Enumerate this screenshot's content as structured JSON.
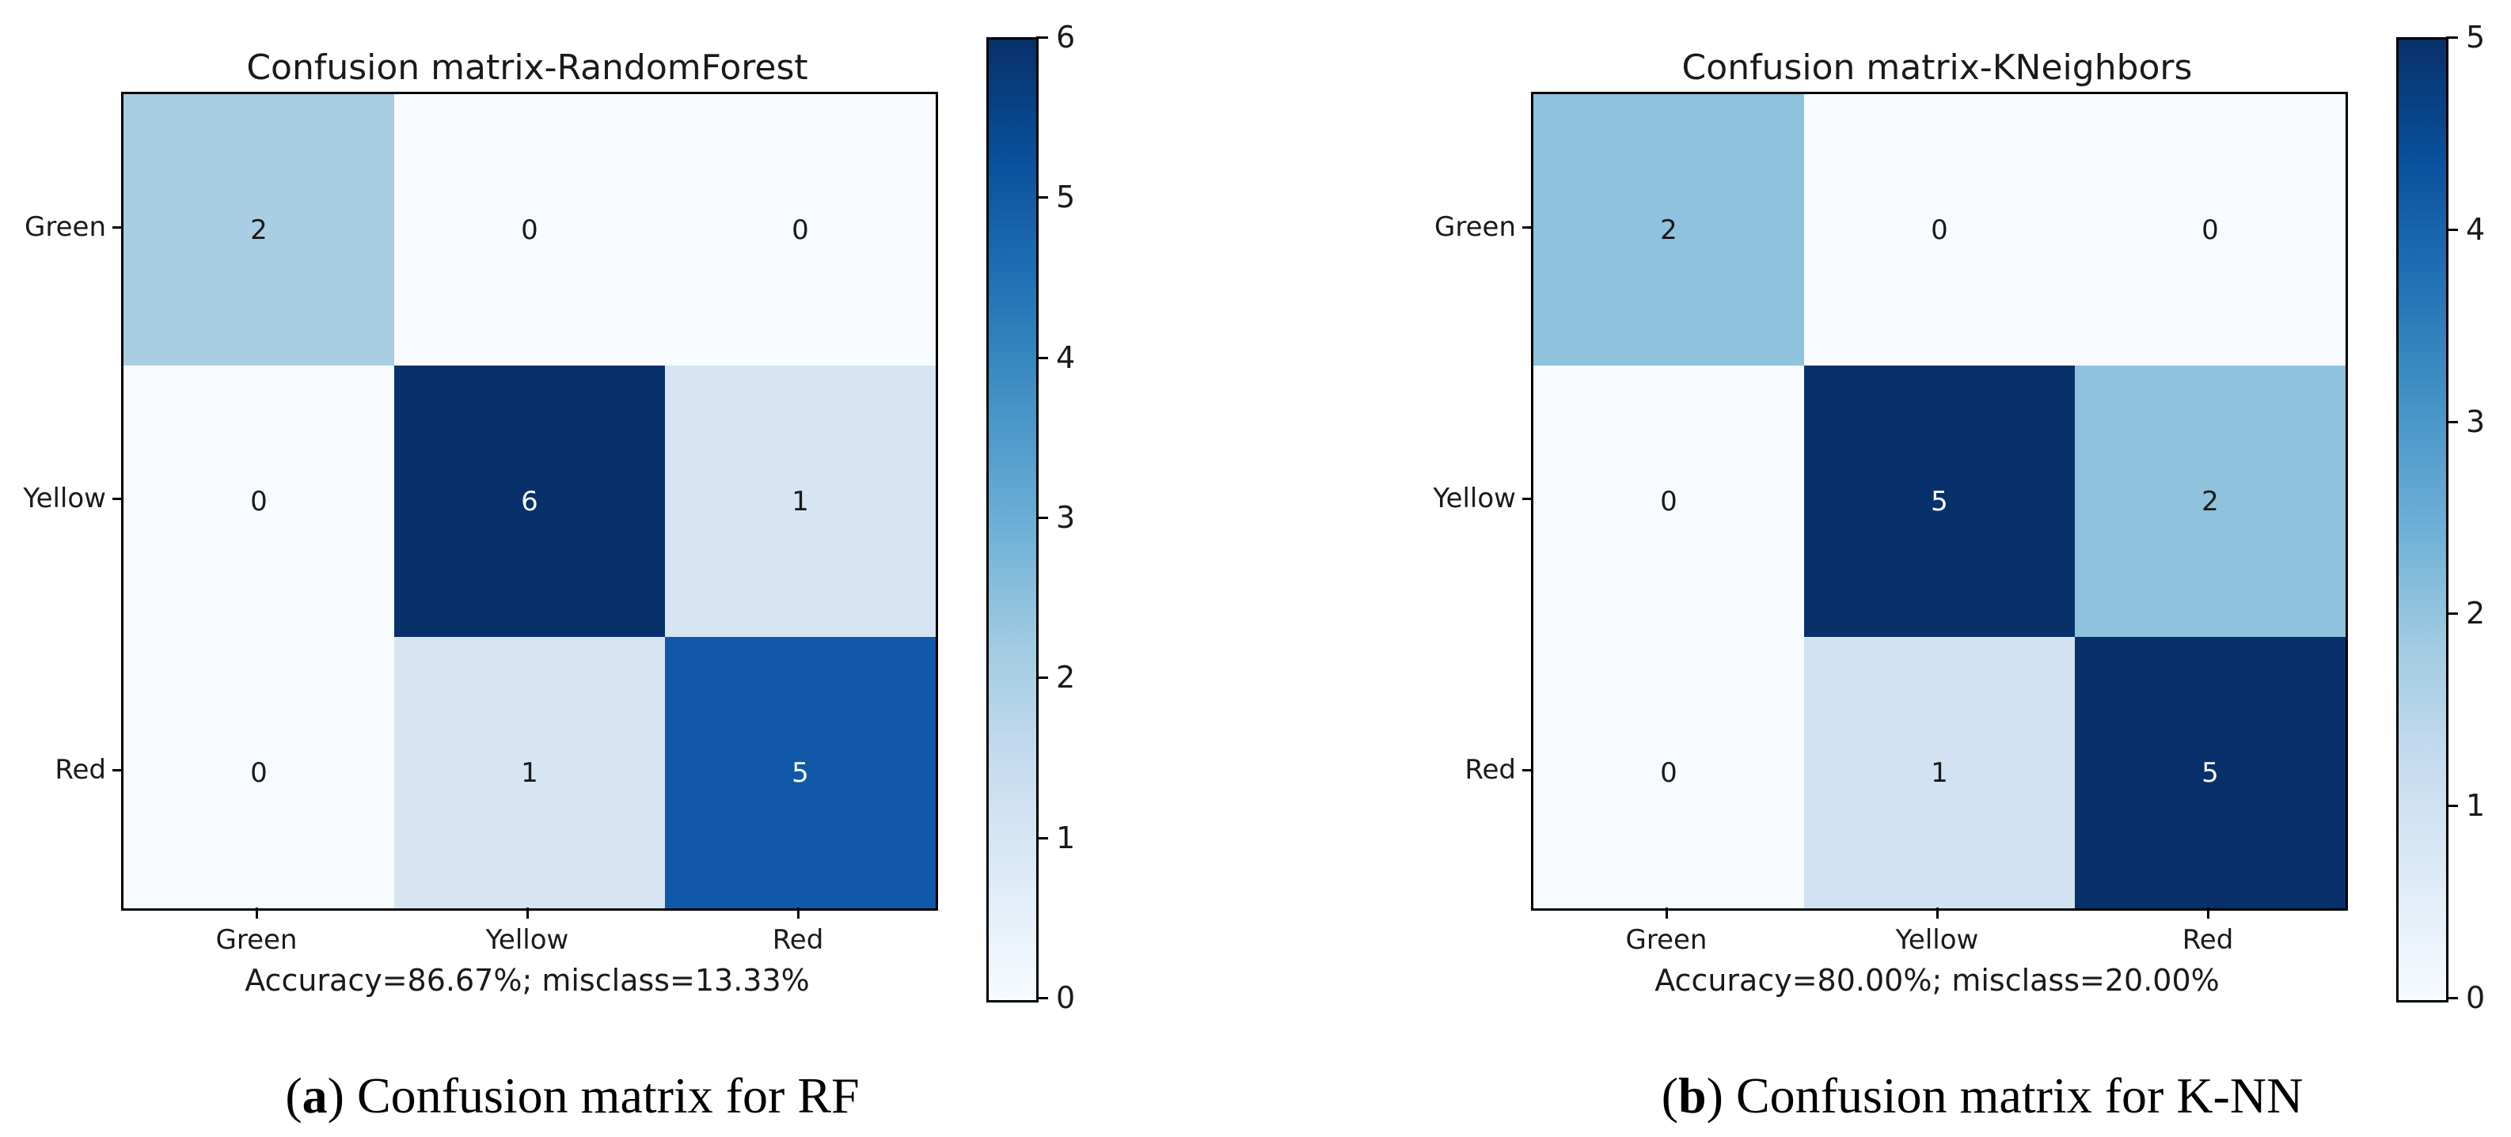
{
  "figure": {
    "background": "#ffffff",
    "colormap": "Blues",
    "colormap_min": "#f7fbff",
    "colormap_max": "#08306b"
  },
  "chart_data": [
    {
      "type": "heatmap",
      "title": "Confusion matrix-RandomForest",
      "categories": [
        "Green",
        "Yellow",
        "Red"
      ],
      "matrix": [
        [
          2,
          0,
          0
        ],
        [
          0,
          6,
          1
        ],
        [
          0,
          1,
          5
        ]
      ],
      "vmin": 0,
      "vmax": 6,
      "xlabel": "Accuracy=86.67%; misclass=13.33%",
      "colorbar_ticks": [
        6,
        5,
        4,
        3,
        2,
        1,
        0
      ],
      "legend_position": "right-colorbar",
      "grid": false,
      "cell_colors": [
        [
          "#a9cee4",
          "#f7fbff",
          "#f7fbff"
        ],
        [
          "#f7fbff",
          "#08306b",
          "#d6e4f3"
        ],
        [
          "#f7fbff",
          "#d6e4f3",
          "#1158a8"
        ]
      ],
      "caption": {
        "open": "(",
        "letter": "a",
        "rest": ") Confusion matrix for RF"
      }
    },
    {
      "type": "heatmap",
      "title": "Confusion matrix-KNeighbors",
      "categories": [
        "Green",
        "Yellow",
        "Red"
      ],
      "matrix": [
        [
          2,
          0,
          0
        ],
        [
          0,
          5,
          2
        ],
        [
          0,
          1,
          5
        ]
      ],
      "vmin": 0,
      "vmax": 5,
      "xlabel": "Accuracy=80.00%; misclass=20.00%",
      "colorbar_ticks": [
        5,
        4,
        3,
        2,
        1,
        0
      ],
      "legend_position": "right-colorbar",
      "grid": false,
      "cell_colors": [
        [
          "#8fc2dd",
          "#f7fbff",
          "#f7fbff"
        ],
        [
          "#f7fbff",
          "#08306b",
          "#8fc2dd"
        ],
        [
          "#f7fbff",
          "#d2e2f2",
          "#08306b"
        ]
      ],
      "caption": {
        "open": "(",
        "letter": "b",
        "rest": ") Confusion matrix for K-NN"
      }
    }
  ]
}
